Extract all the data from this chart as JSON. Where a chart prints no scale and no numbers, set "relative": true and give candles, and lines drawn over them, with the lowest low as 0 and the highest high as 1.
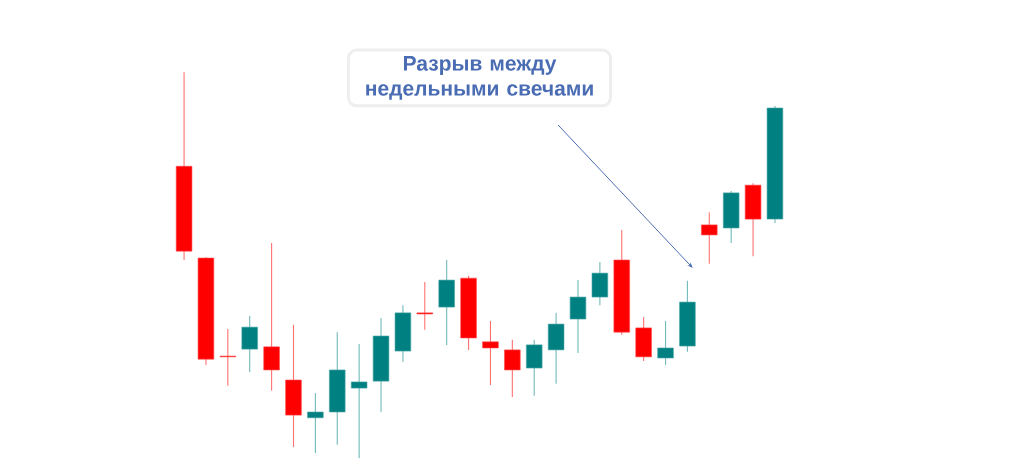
{
  "chart_data": {
    "type": "candlestick",
    "relative": true,
    "categories": [
      null,
      null,
      null,
      null,
      null,
      null,
      null,
      null,
      null,
      null,
      null,
      null,
      null,
      null,
      null,
      null,
      null,
      null,
      null,
      null,
      null,
      null,
      null,
      null,
      null,
      null,
      null,
      null
    ],
    "ohlc": [
      [
        0.756,
        1.0,
        0.513,
        0.536
      ],
      [
        0.518,
        0.521,
        0.241,
        0.256
      ],
      [
        0.264,
        0.334,
        0.187,
        0.262
      ],
      [
        0.282,
        0.368,
        0.223,
        0.339
      ],
      [
        0.288,
        0.557,
        0.174,
        0.228
      ],
      [
        0.202,
        0.345,
        0.028,
        0.111
      ],
      [
        0.104,
        0.168,
        0.013,
        0.119
      ],
      [
        0.119,
        0.326,
        0.034,
        0.228
      ],
      [
        0.181,
        0.295,
        0.0,
        0.197
      ],
      [
        0.199,
        0.363,
        0.119,
        0.316
      ],
      [
        0.277,
        0.396,
        0.249,
        0.376
      ],
      [
        0.376,
        0.456,
        0.332,
        0.373
      ],
      [
        0.391,
        0.513,
        0.293,
        0.461
      ],
      [
        0.466,
        0.472,
        0.28,
        0.311
      ],
      [
        0.301,
        0.355,
        0.189,
        0.285
      ],
      [
        0.28,
        0.306,
        0.158,
        0.228
      ],
      [
        0.233,
        0.306,
        0.161,
        0.293
      ],
      [
        0.28,
        0.376,
        0.192,
        0.347
      ],
      [
        0.36,
        0.461,
        0.272,
        0.417
      ],
      [
        0.417,
        0.508,
        0.396,
        0.479
      ],
      [
        0.513,
        0.591,
        0.319,
        0.326
      ],
      [
        0.337,
        0.365,
        0.251,
        0.262
      ],
      [
        0.259,
        0.355,
        0.241,
        0.285
      ],
      [
        0.29,
        0.459,
        0.275,
        0.404
      ],
      [
        0.604,
        0.637,
        0.503,
        0.578
      ],
      [
        0.596,
        0.692,
        0.557,
        0.687
      ],
      [
        0.707,
        0.712,
        0.523,
        0.619
      ],
      [
        0.619,
        0.912,
        0.609,
        0.907
      ]
    ],
    "colors": [
      "#ff0000",
      "#ff0000",
      "#ff0000",
      "#008080",
      "#ff0000",
      "#ff0000",
      "#008080",
      "#008080",
      "#008080",
      "#008080",
      "#008080",
      "#ff0000",
      "#008080",
      "#ff0000",
      "#ff0000",
      "#ff0000",
      "#008080",
      "#008080",
      "#008080",
      "#008080",
      "#ff0000",
      "#ff0000",
      "#008080",
      "#008080",
      "#ff0000",
      "#008080",
      "#ff0000",
      "#008080"
    ],
    "annotations": [
      "Разрыв между недельными свечами"
    ]
  }
}
